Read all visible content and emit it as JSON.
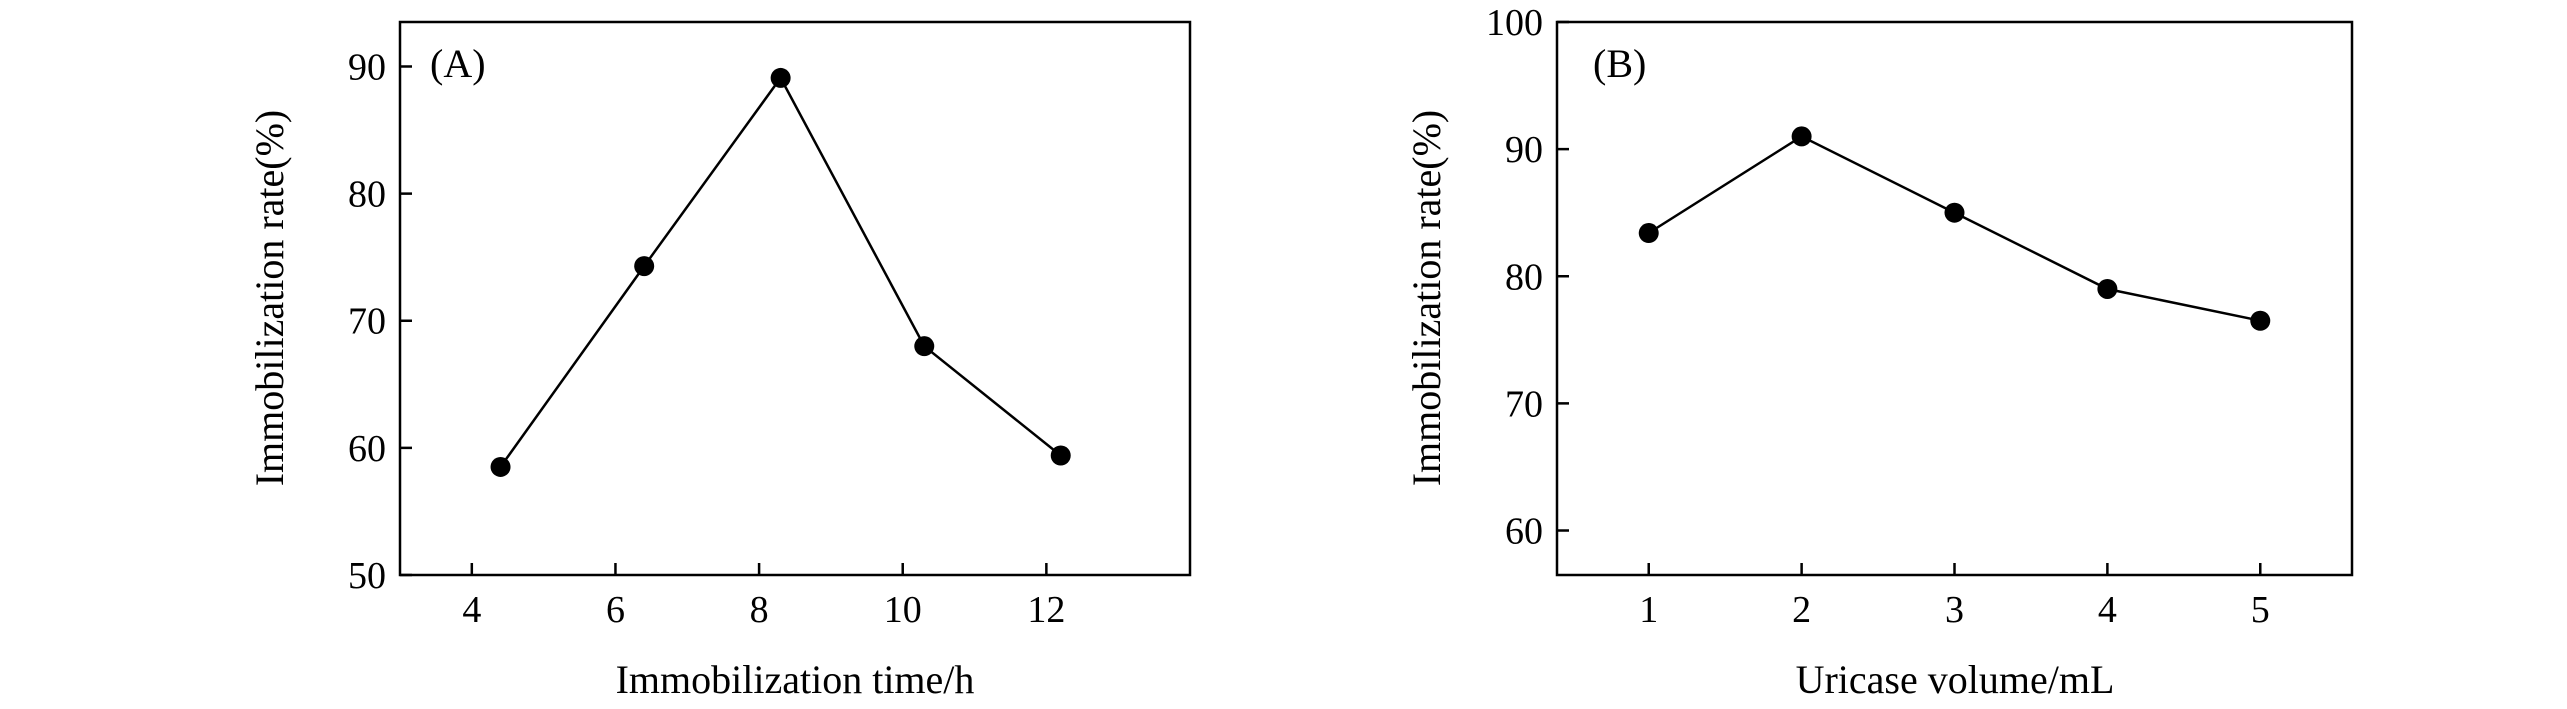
{
  "chart_data": [
    {
      "type": "line",
      "panel_label": "(A)",
      "xlabel": "Immobilization time/h",
      "ylabel": "Immobilization rate(%)",
      "xlim": [
        3,
        14
      ],
      "ylim": [
        50,
        93.5
      ],
      "xticks": [
        4,
        6,
        8,
        10,
        12
      ],
      "yticks": [
        50,
        60,
        70,
        80,
        90
      ],
      "series": [
        {
          "x": [
            4.4,
            6.4,
            8.3,
            10.3,
            12.2
          ],
          "y": [
            58.5,
            74.3,
            89.1,
            68.0,
            59.4
          ]
        }
      ]
    },
    {
      "type": "line",
      "panel_label": "(B)",
      "xlabel": "Uricase volume/mL",
      "ylabel": "Immobilization rate(%)",
      "xlim": [
        0.4,
        5.6
      ],
      "ylim": [
        56.5,
        100
      ],
      "xticks": [
        1,
        2,
        3,
        4,
        5
      ],
      "yticks": [
        60,
        70,
        80,
        90,
        100
      ],
      "series": [
        {
          "x": [
            1,
            2,
            3,
            4,
            5
          ],
          "y": [
            83.4,
            91.0,
            85.0,
            79.0,
            76.5
          ]
        }
      ]
    }
  ]
}
